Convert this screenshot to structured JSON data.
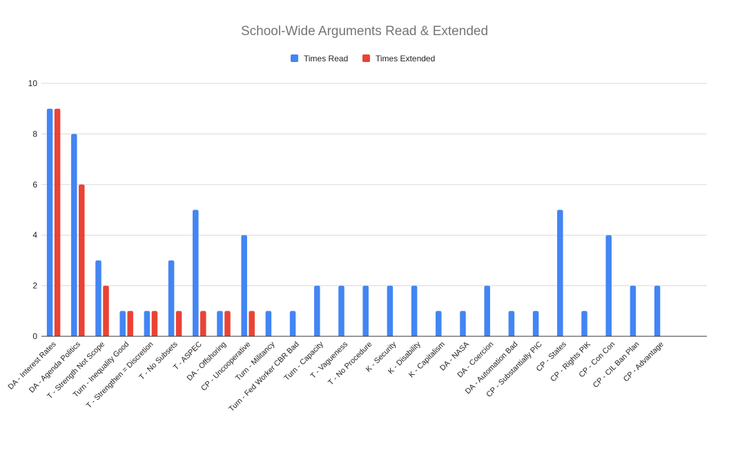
{
  "chart_data": {
    "type": "bar",
    "title": "School-Wide Arguments Read & Extended",
    "xlabel": "",
    "ylabel": "",
    "ylim": [
      0,
      10
    ],
    "yticks": [
      0,
      2,
      4,
      6,
      8,
      10
    ],
    "grid": true,
    "legend": "top-center",
    "categories": [
      "DA - Interest Rates",
      "DA - Agenda Politics",
      "T - Strength Not Scope",
      "Turn - Inequality Good",
      "T - Strengthen = Discretion",
      "T - No Subsets",
      "T - ASPEC",
      "DA - Offshoring",
      "CP - Uncooperative",
      "Turn - Militancy",
      "Turn - Fed Worker CBR Bad",
      "Turn - Capacity",
      "T - Vagueness",
      "T - No Procedure",
      "K - Security",
      "K - Disability",
      "K - Capitalism",
      "DA - NASA",
      "DA - Coercion",
      "DA - Automation Bad",
      "CP - Substantially PIC",
      "CP - States",
      "CP - Rights PIK",
      "CP - Con Con",
      "CP - CIL Ban Plan",
      "CP - Advantage"
    ],
    "series": [
      {
        "name": "Times Read",
        "color": "#4285F4",
        "values": [
          9,
          8,
          3,
          1,
          1,
          3,
          5,
          1,
          4,
          1,
          1,
          2,
          2,
          2,
          2,
          2,
          1,
          1,
          2,
          1,
          1,
          5,
          1,
          4,
          2,
          2
        ]
      },
      {
        "name": "Times Extended",
        "color": "#EA4335",
        "values": [
          9,
          6,
          2,
          1,
          1,
          1,
          1,
          1,
          1,
          0,
          0,
          0,
          0,
          0,
          0,
          0,
          0,
          0,
          0,
          0,
          0,
          0,
          0,
          0,
          0,
          0
        ]
      }
    ]
  }
}
